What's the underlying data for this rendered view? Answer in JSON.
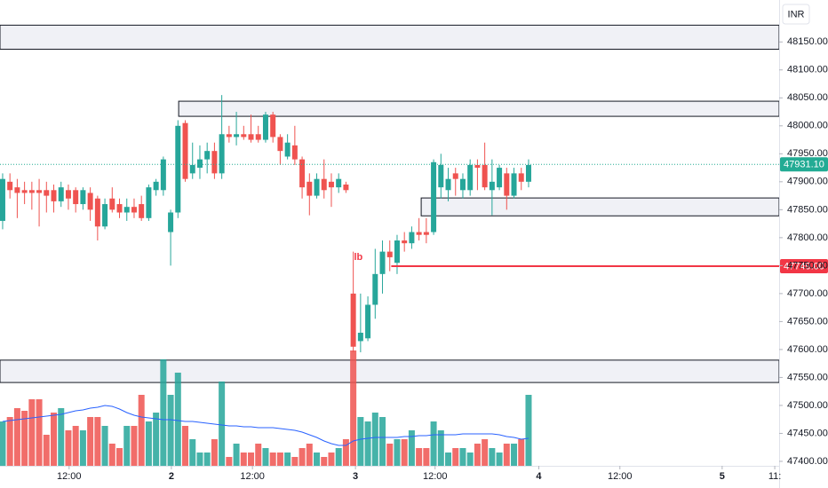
{
  "chart_data": {
    "type": "candlestick",
    "currency": "INR",
    "up_color": "#26a69a",
    "down_color": "#ef5350",
    "xlim": [
      -0.36,
      106.3
    ],
    "xticks": [
      {
        "value": 9.1,
        "label": "12:00"
      },
      {
        "value": 23.1,
        "label": "2"
      },
      {
        "value": 34.2,
        "label": "12:00"
      },
      {
        "value": 48.3,
        "label": "3"
      },
      {
        "value": 59.2,
        "label": "12:00"
      },
      {
        "value": 73.4,
        "label": "4"
      },
      {
        "value": 84.5,
        "label": "12:00"
      },
      {
        "value": 98.5,
        "label": "5"
      },
      {
        "value": 105.7,
        "label": "11:"
      }
    ],
    "ylim": [
      47392,
      48225
    ],
    "yticks": [
      {
        "value": 47400,
        "label": "47400.00"
      },
      {
        "value": 47450,
        "label": "47450.00"
      },
      {
        "value": 47500,
        "label": "47500.00"
      },
      {
        "value": 47550,
        "label": "47550.00"
      },
      {
        "value": 47600,
        "label": "47600.00"
      },
      {
        "value": 47650,
        "label": "47650.00"
      },
      {
        "value": 47700,
        "label": "47700.00"
      },
      {
        "value": 47750,
        "label": "47750.00"
      },
      {
        "value": 47800,
        "label": "47800.00"
      },
      {
        "value": 47850,
        "label": "47850.00"
      },
      {
        "value": 47900,
        "label": "47900.00"
      },
      {
        "value": 47950,
        "label": "47950.00"
      },
      {
        "value": 48000,
        "label": "48000.00"
      },
      {
        "value": 48050,
        "label": "48050.00"
      },
      {
        "value": 48100,
        "label": "48100.00"
      },
      {
        "value": 48150,
        "label": "48150.00"
      }
    ],
    "open": [
      47830,
      47900,
      47890,
      47885,
      47885,
      47885,
      47885,
      47885,
      47865,
      47885,
      47885,
      47860,
      47880,
      47870,
      47820,
      47870,
      47860,
      47845,
      47855,
      47860,
      47835,
      47885,
      47885,
      47810,
      47845,
      48005,
      47915,
      47925,
      47940,
      47955,
      47915,
      47985,
      47980,
      47985,
      47985,
      47985,
      47975,
      48020,
      47980,
      47945,
      47965,
      47940,
      47900,
      47875,
      47905,
      47900,
      47890,
      47895,
      47700,
      47615,
      47620,
      47680,
      47735,
      47775,
      47755,
      47795,
      47790,
      47810,
      47810,
      47810,
      47890,
      47885,
      47915,
      47885,
      47885,
      47930,
      47930,
      47885,
      47890,
      47915,
      47875,
      47915,
      47900
    ],
    "high": [
      47915,
      47915,
      47905,
      47900,
      47900,
      47905,
      47900,
      47895,
      47900,
      47895,
      47890,
      47890,
      47890,
      47875,
      47870,
      47890,
      47870,
      47870,
      47870,
      47875,
      47895,
      47905,
      47945,
      47850,
      48010,
      48010,
      47970,
      47965,
      47970,
      47970,
      48055,
      48000,
      48025,
      48000,
      48020,
      48000,
      48025,
      48025,
      47985,
      47985,
      48000,
      47945,
      47915,
      47915,
      47940,
      47915,
      47915,
      47900,
      47775,
      47700,
      47695,
      47780,
      47795,
      47795,
      47805,
      47810,
      47820,
      47835,
      47835,
      47940,
      47950,
      47925,
      47925,
      47915,
      47940,
      47940,
      47970,
      47940,
      47930,
      47925,
      47925,
      47925,
      47940
    ],
    "low": [
      47815,
      47870,
      47835,
      47860,
      47850,
      47820,
      47845,
      47845,
      47855,
      47850,
      47845,
      47850,
      47830,
      47795,
      47815,
      47845,
      47835,
      47830,
      47835,
      47830,
      47830,
      47875,
      47875,
      47750,
      47835,
      47900,
      47905,
      47905,
      47915,
      47905,
      47905,
      47970,
      47965,
      47975,
      47970,
      47970,
      47970,
      47970,
      47930,
      47940,
      47930,
      47870,
      47840,
      47870,
      47870,
      47855,
      47880,
      47880,
      47595,
      47595,
      47615,
      47655,
      47700,
      47740,
      47735,
      47775,
      47780,
      47795,
      47790,
      47805,
      47870,
      47865,
      47875,
      47870,
      47875,
      47885,
      47885,
      47840,
      47885,
      47850,
      47870,
      47885,
      47890
    ],
    "close": [
      47905,
      47885,
      47880,
      47880,
      47880,
      47880,
      47875,
      47865,
      47890,
      47870,
      47860,
      47885,
      47850,
      47820,
      47860,
      47850,
      47845,
      47855,
      47845,
      47835,
      47890,
      47900,
      47940,
      47845,
      48000,
      47905,
      47930,
      47940,
      47955,
      47915,
      47985,
      47980,
      47985,
      47980,
      47975,
      47975,
      48020,
      47980,
      47955,
      47970,
      47940,
      47890,
      47875,
      47905,
      47885,
      47890,
      47905,
      47885,
      47605,
      47630,
      47680,
      47735,
      47775,
      47765,
      47795,
      47790,
      47810,
      47805,
      47805,
      47935,
      47930,
      47905,
      47905,
      47905,
      47930,
      47925,
      47890,
      47900,
      47925,
      47875,
      47915,
      47900,
      47930
    ],
    "y2lim": [
      0,
      525
    ],
    "volume": [
      50,
      55,
      65,
      62,
      75,
      75,
      35,
      60,
      65,
      40,
      45,
      40,
      55,
      55,
      45,
      25,
      20,
      45,
      45,
      80,
      50,
      60,
      120,
      80,
      105,
      45,
      30,
      15,
      15,
      30,
      95,
      10,
      25,
      15,
      15,
      25,
      20,
      15,
      15,
      15,
      10,
      20,
      25,
      15,
      10,
      15,
      20,
      30,
      130,
      55,
      50,
      60,
      55,
      25,
      30,
      30,
      40,
      20,
      20,
      50,
      40,
      15,
      20,
      20,
      15,
      25,
      30,
      20,
      15,
      25,
      25,
      30,
      80
    ],
    "volume_ma_color": "#2962ff",
    "volume_ma": [
      50,
      51,
      52,
      53,
      54,
      55,
      56,
      57,
      58,
      60,
      62,
      63,
      65,
      66,
      68,
      67,
      64,
      60,
      57,
      55,
      54,
      53,
      52,
      52,
      51,
      50,
      50,
      49,
      48,
      47,
      46,
      45,
      45,
      44,
      44,
      43,
      43,
      43,
      42,
      41,
      40,
      38,
      35,
      32,
      28,
      25,
      23,
      23,
      28,
      30,
      31,
      32,
      32,
      32,
      32,
      33,
      33,
      34,
      34,
      35,
      35,
      35,
      35,
      36,
      36,
      36,
      36,
      36,
      35,
      33,
      32,
      30,
      31
    ],
    "zones": [
      {
        "low": 48137,
        "high": 48180,
        "from": -0.36
      },
      {
        "low": 48017,
        "high": 48044,
        "from": 24.1
      },
      {
        "low": 47839,
        "high": 47871,
        "from": 57.3
      },
      {
        "low": 47541,
        "high": 47581,
        "from": -0.36
      }
    ],
    "lines": [
      {
        "value": 47749,
        "label": "47749.00",
        "from": 53.2,
        "color": "#f23645"
      }
    ],
    "last_price": {
      "value": 47931.1,
      "label": "47931.10",
      "color": "#22ab94"
    },
    "annotations": [
      {
        "text": "lb",
        "x": 48.7,
        "y": 47765,
        "color": "#f23645"
      }
    ]
  }
}
